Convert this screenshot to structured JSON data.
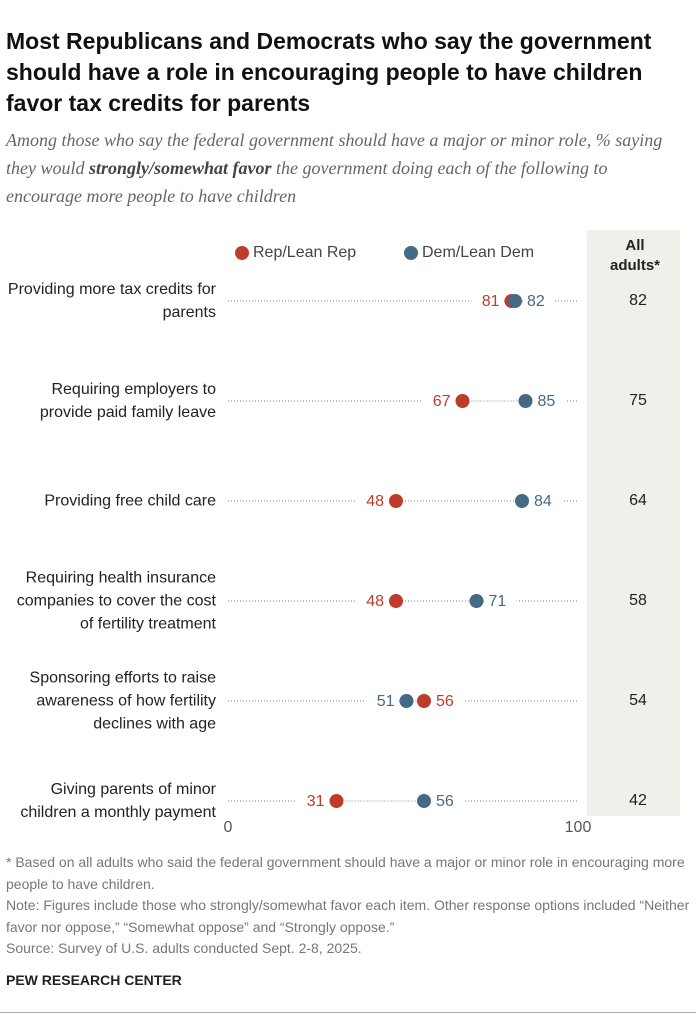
{
  "chart_data": {
    "type": "dot",
    "title": "Most Republicans and Democrats who say the government should have a role in encouraging people to have children favor tax credits for parents",
    "subtitle": {
      "before": "Among those who say the federal government should have a major or minor role, % saying they would",
      "emphasis": "strongly/somewhat favor",
      "after": "the government doing each of the following to encourage more people to have children"
    },
    "categories": [
      "Providing more tax credits for parents",
      "Requiring employers to provide paid family leave",
      "Providing free child care",
      "Requiring health insurance companies to cover the cost of fertility treatment",
      "Sponsoring efforts to raise awareness of how fertility declines with age",
      "Giving parents of minor children a monthly payment"
    ],
    "series": [
      {
        "name": "Rep/Lean Rep",
        "color": "#bd3d2a",
        "values": [
          81,
          67,
          48,
          48,
          56,
          31
        ]
      },
      {
        "name": "Dem/Lean Dem",
        "color": "#456a84",
        "values": [
          82,
          85,
          84,
          71,
          51,
          56
        ]
      }
    ],
    "all_adults": {
      "header": "All adults*",
      "values": [
        82,
        75,
        64,
        58,
        54,
        42
      ]
    },
    "xlim": [
      0,
      100
    ],
    "xticks": [
      0,
      100
    ],
    "notes": [
      "* Based on all adults who said the federal government should have a major or minor role in encouraging more people to have children.",
      "Note: Figures include those who strongly/somewhat favor each item. Other response options included “Neither favor nor oppose,” “Somewhat oppose” and “Strongly oppose.”",
      "Source: Survey of U.S. adults conducted Sept. 2-8, 2025."
    ],
    "org": "PEW RESEARCH CENTER"
  }
}
